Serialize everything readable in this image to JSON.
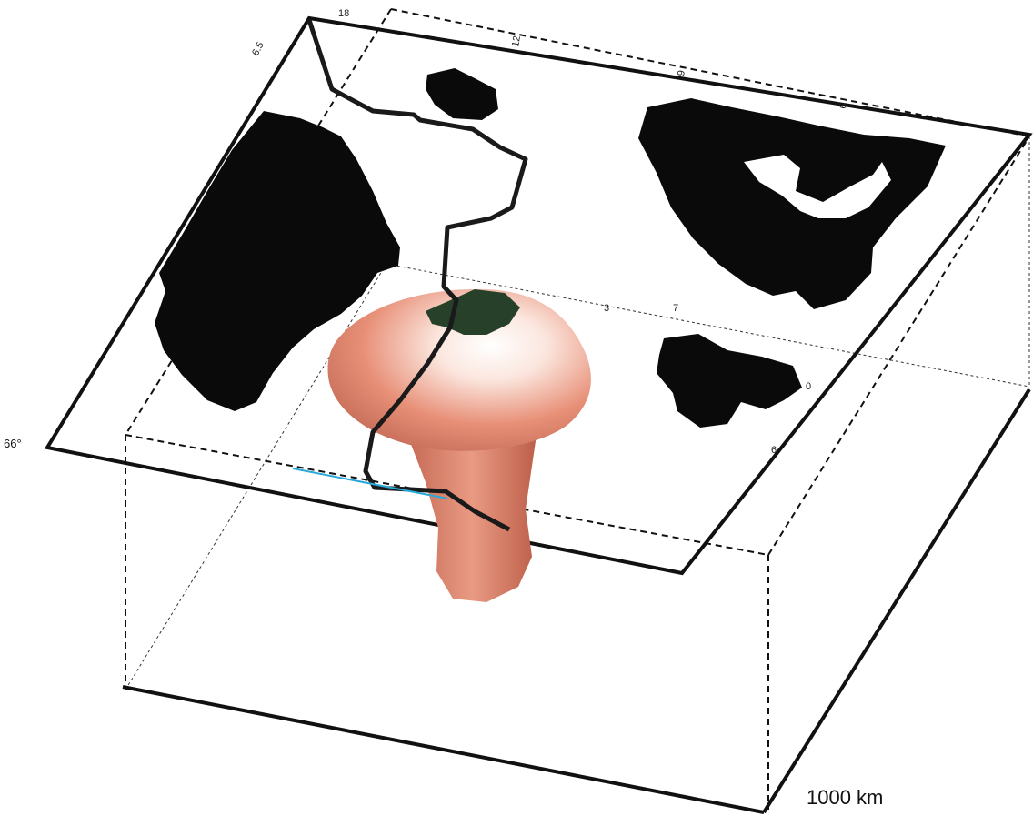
{
  "scale_label": "1000 km",
  "corner_label": "66°",
  "tick_labels": [
    "6.5",
    "18",
    "12",
    "9",
    "6",
    "3",
    "7",
    "0",
    "6"
  ],
  "colors": {
    "land": "#0a0a0a",
    "plume": "#e88f77",
    "plume_shadow": "#b85c48",
    "plume_highlight": "#ffffff",
    "ridge_line": "#1a1a1a",
    "iceland_green": "#26402a",
    "accent_line": "#2aa8d8",
    "box_line": "#111111"
  },
  "features": [
    "greenland-landmass",
    "scandinavia-landmass",
    "british-isles-landmass",
    "iceland",
    "mid-atlantic-ridge-line",
    "mantle-plume"
  ]
}
